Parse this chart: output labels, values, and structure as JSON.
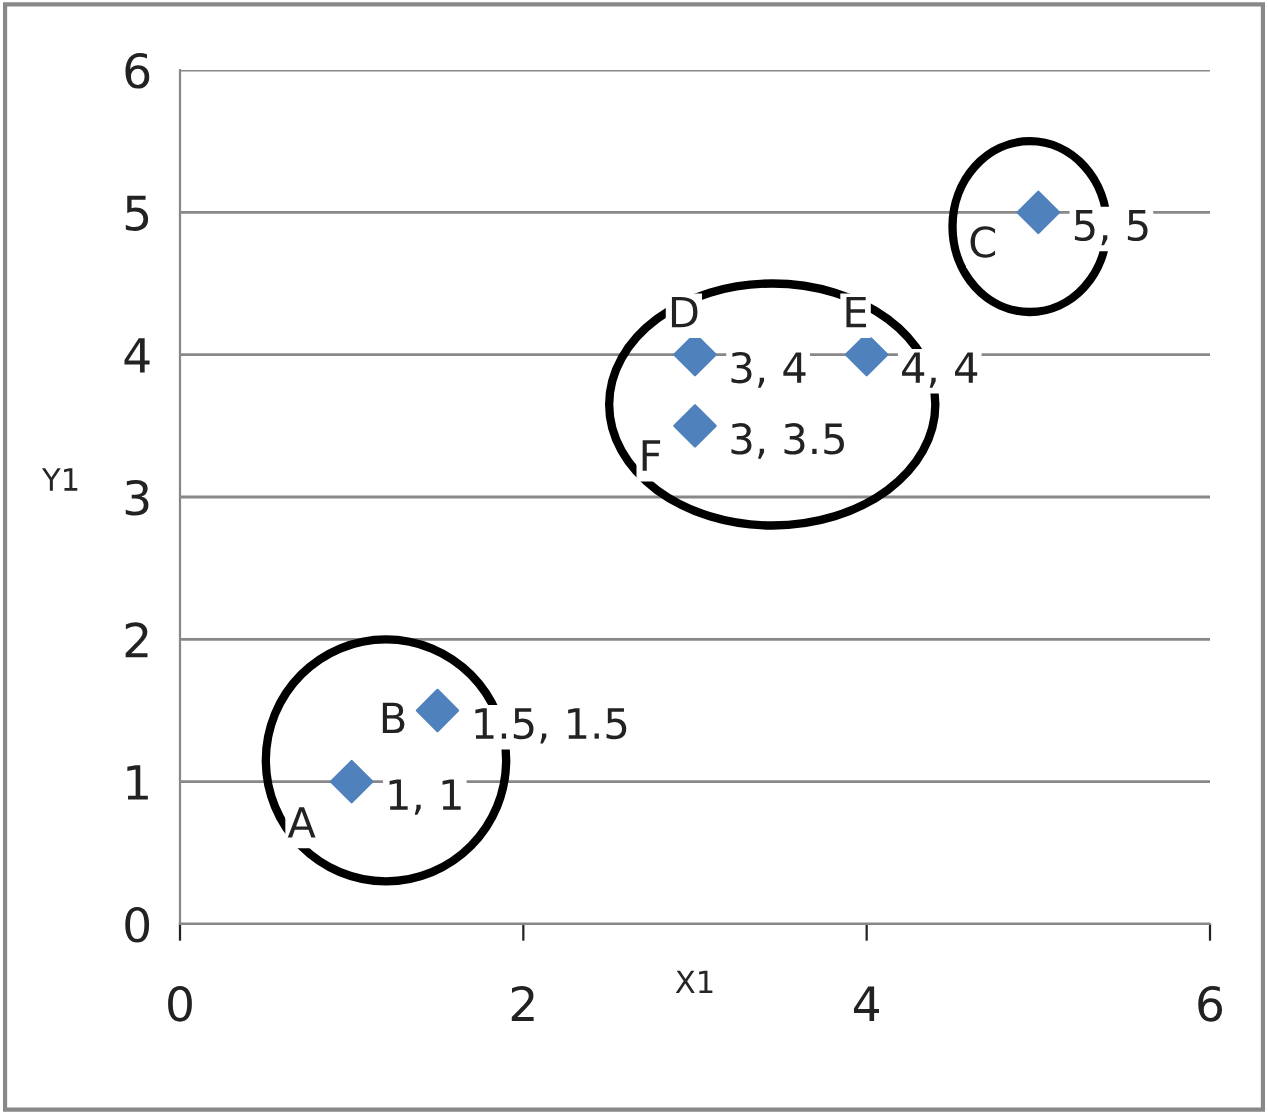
{
  "chart_data": {
    "type": "scatter",
    "xlabel": "X1",
    "ylabel": "Y1",
    "x": [
      1,
      1.5,
      3,
      4,
      3,
      5
    ],
    "series": [
      {
        "color": "#4f81bd",
        "values": [
          1,
          1.5,
          4,
          4,
          3.5,
          5
        ],
        "value_labels": [
          "1, 1",
          "1.5, 1.5",
          "3, 4",
          "4, 4",
          "3, 3.5",
          "5, 5"
        ]
      }
    ],
    "xlim": [
      0,
      6
    ],
    "xticks": [
      0,
      2,
      4,
      6
    ],
    "ylim": [
      0,
      6
    ],
    "yticks": [
      0,
      1,
      2,
      3,
      4,
      5,
      6
    ],
    "grid": "y",
    "marker": "diamond",
    "legend": false,
    "annotations": [
      {
        "text": "A",
        "x": 1,
        "y": 1
      },
      {
        "text": "B",
        "x": 1.5,
        "y": 1.5
      },
      {
        "text": "D",
        "x": 3,
        "y": 4
      },
      {
        "text": "E",
        "x": 4,
        "y": 4
      },
      {
        "text": "F",
        "x": 3,
        "y": 3.5
      },
      {
        "text": "C",
        "x": 5,
        "y": 5
      }
    ]
  }
}
